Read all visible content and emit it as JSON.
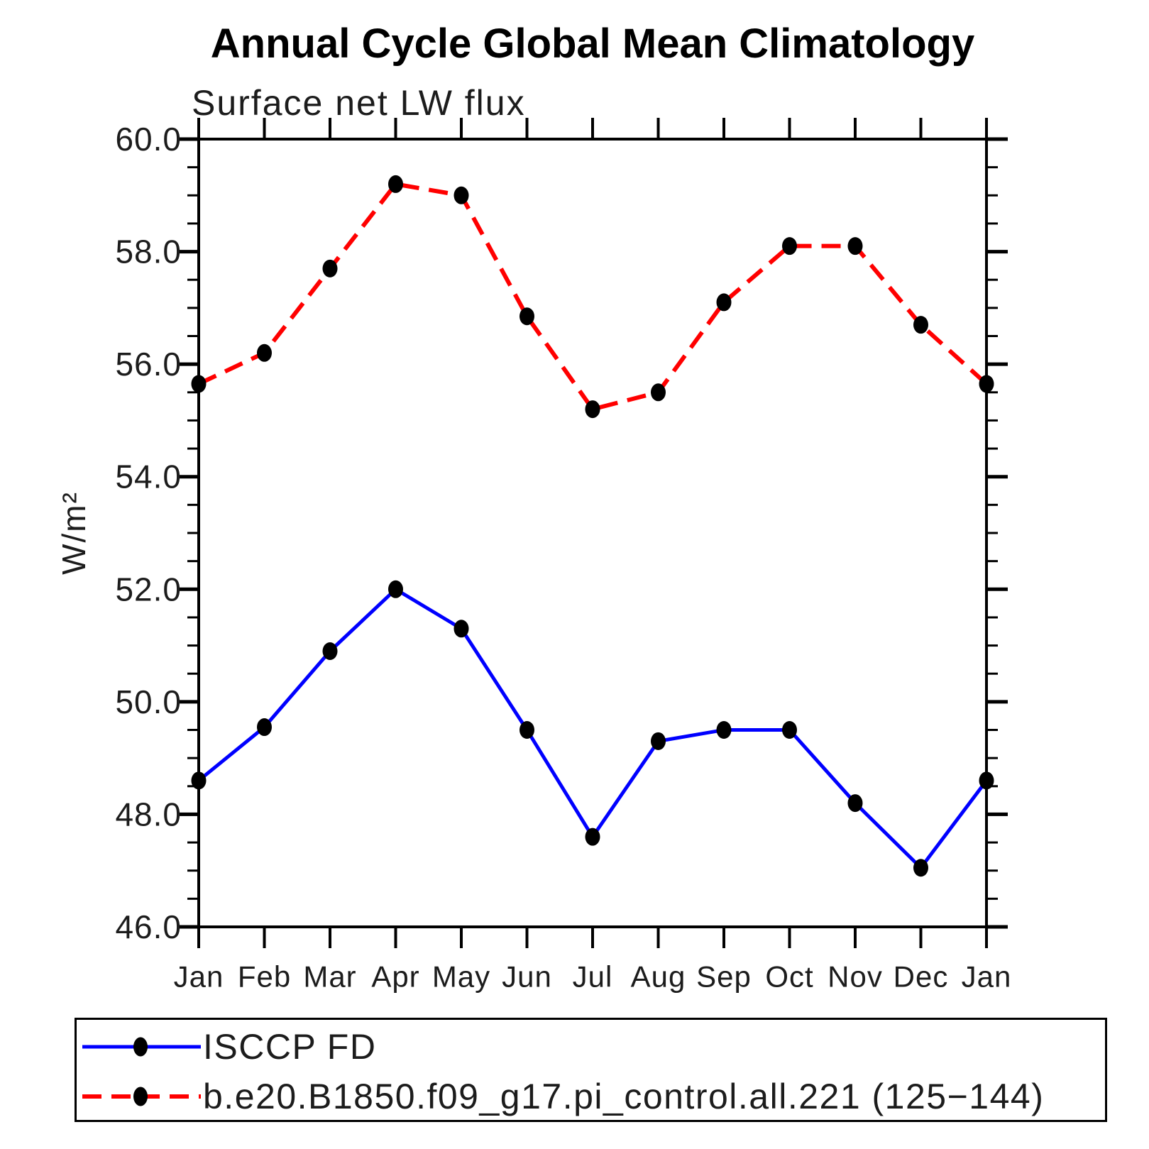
{
  "chart_data": {
    "type": "line",
    "title": "Annual Cycle Global Mean Climatology",
    "subtitle": "Surface net LW flux",
    "ylabel": "W/m²",
    "xlabel": "",
    "categories": [
      "Jan",
      "Feb",
      "Mar",
      "Apr",
      "May",
      "Jun",
      "Jul",
      "Aug",
      "Sep",
      "Oct",
      "Nov",
      "Dec",
      "Jan"
    ],
    "ylim": [
      46.0,
      60.0
    ],
    "ytick_major_step": 2.0,
    "ytick_minor_step": 0.5,
    "ytick_values": [
      60.0,
      58.0,
      56.0,
      54.0,
      52.0,
      50.0,
      48.0,
      46.0
    ],
    "ytick_labels": [
      "60.0",
      "58.0",
      "56.0",
      "54.0",
      "52.0",
      "50.0",
      "48.0",
      "46.0"
    ],
    "grid": false,
    "legend_position": "bottom-left",
    "axis_color": "#000000",
    "marker": "filled-circle",
    "marker_color": "#000000",
    "series": [
      {
        "name": "ISCCP FD",
        "color": "#0000ff",
        "line_style": "solid",
        "values": [
          48.6,
          49.55,
          50.9,
          52.0,
          51.3,
          49.5,
          47.6,
          49.3,
          49.5,
          49.5,
          48.2,
          47.05,
          48.6
        ]
      },
      {
        "name": "b.e20.B1850.f09_g17.pi_control.all.221 (125−144)",
        "color": "#ff0000",
        "line_style": "dashed",
        "values": [
          55.65,
          56.2,
          57.7,
          59.2,
          59.0,
          56.85,
          55.2,
          55.5,
          57.1,
          58.1,
          58.1,
          56.7,
          55.65
        ]
      }
    ]
  }
}
